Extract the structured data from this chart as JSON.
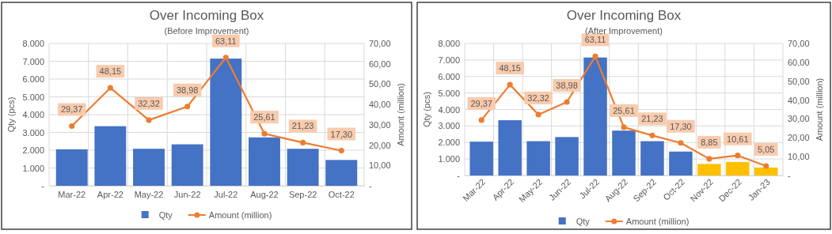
{
  "chart_data": [
    {
      "type": "bar",
      "title": "Over Incoming Box",
      "subtitle": "(Before Improvement)",
      "categories": [
        "Mar-22",
        "Apr-22",
        "May-22",
        "Jun-22",
        "Jul-22",
        "Aug-22",
        "Sep-22",
        "Oct-22"
      ],
      "ylabel": "Qty (pcs)",
      "y2label": "Amount (million)",
      "ylim": [
        0,
        8000
      ],
      "yticks": [
        {
          "value": 0,
          "label": "-"
        },
        {
          "value": 1000,
          "label": "1.000"
        },
        {
          "value": 2000,
          "label": "2.000"
        },
        {
          "value": 3000,
          "label": "3.000"
        },
        {
          "value": 4000,
          "label": "4.000"
        },
        {
          "value": 5000,
          "label": "5.000"
        },
        {
          "value": 6000,
          "label": "6.000"
        },
        {
          "value": 7000,
          "label": "7.000"
        },
        {
          "value": 8000,
          "label": "8.000"
        }
      ],
      "y2lim": [
        0,
        70
      ],
      "y2ticks": [
        {
          "value": 0,
          "label": "-"
        },
        {
          "value": 10,
          "label": "10,00"
        },
        {
          "value": 20,
          "label": "20,00"
        },
        {
          "value": 30,
          "label": "30,00"
        },
        {
          "value": 40,
          "label": "40,00"
        },
        {
          "value": 50,
          "label": "50,00"
        },
        {
          "value": 60,
          "label": "60,00"
        },
        {
          "value": 70,
          "label": "70,00"
        }
      ],
      "grid": true,
      "legend": "bottom",
      "marker": "circle",
      "series": [
        {
          "name": "Qty",
          "color": "#4472c4",
          "values": [
            2050,
            3350,
            2080,
            2330,
            7150,
            2720,
            2080,
            1450
          ]
        },
        {
          "name": "Amount (million)",
          "type": "line",
          "axis": "y2",
          "color": "#ed7d31",
          "values": [
            29.37,
            48.15,
            32.32,
            38.98,
            63.11,
            25.61,
            21.23,
            17.3
          ],
          "value_labels": [
            "29,37",
            "48,15",
            "32,32",
            "38,98",
            "63,11",
            "25,61",
            "21,23",
            "17,30"
          ]
        }
      ]
    },
    {
      "type": "bar",
      "title": "Over Incoming Box",
      "subtitle": "(After Improvement)",
      "categories": [
        "Mar-22",
        "Apr-22",
        "May-22",
        "Jun-22",
        "Jul-22",
        "Aug-22",
        "Sep-22",
        "Oct-22",
        "Nov-22",
        "Dec-22",
        "Jan-23"
      ],
      "ylabel": "Qty (pcs)",
      "y2label": "Amount (million)",
      "ylim": [
        0,
        8000
      ],
      "yticks": [
        {
          "value": 0,
          "label": "-"
        },
        {
          "value": 1000,
          "label": "1.000"
        },
        {
          "value": 2000,
          "label": "2.000"
        },
        {
          "value": 3000,
          "label": "3.000"
        },
        {
          "value": 4000,
          "label": "4.000"
        },
        {
          "value": 5000,
          "label": "5.000"
        },
        {
          "value": 6000,
          "label": "6.000"
        },
        {
          "value": 7000,
          "label": "7.000"
        },
        {
          "value": 8000,
          "label": "8.000"
        }
      ],
      "y2lim": [
        0,
        70
      ],
      "y2ticks": [
        {
          "value": 0,
          "label": "-"
        },
        {
          "value": 10,
          "label": "10,00"
        },
        {
          "value": 20,
          "label": "20,00"
        },
        {
          "value": 30,
          "label": "30,00"
        },
        {
          "value": 40,
          "label": "40,00"
        },
        {
          "value": 50,
          "label": "50,00"
        },
        {
          "value": 60,
          "label": "60,00"
        },
        {
          "value": 70,
          "label": "70,00"
        }
      ],
      "grid": true,
      "legend": "bottom",
      "marker": "circle",
      "series": [
        {
          "name": "Qty",
          "color": "#4472c4",
          "colors": [
            "#4472c4",
            "#4472c4",
            "#4472c4",
            "#4472c4",
            "#4472c4",
            "#4472c4",
            "#4472c4",
            "#4472c4",
            "#ffc000",
            "#ffc000",
            "#ffc000"
          ],
          "values": [
            2050,
            3350,
            2080,
            2330,
            7150,
            2720,
            2080,
            1450,
            700,
            820,
            480
          ]
        },
        {
          "name": "Amount (million)",
          "type": "line",
          "axis": "y2",
          "color": "#ed7d31",
          "values": [
            29.37,
            48.15,
            32.32,
            38.98,
            63.11,
            25.61,
            21.23,
            17.3,
            8.85,
            10.61,
            5.05
          ],
          "value_labels": [
            "29,37",
            "48,15",
            "32,32",
            "38,98",
            "63,11",
            "25,61",
            "21,23",
            "17,30",
            "8,85",
            "10,61",
            "5,05"
          ]
        }
      ]
    }
  ]
}
